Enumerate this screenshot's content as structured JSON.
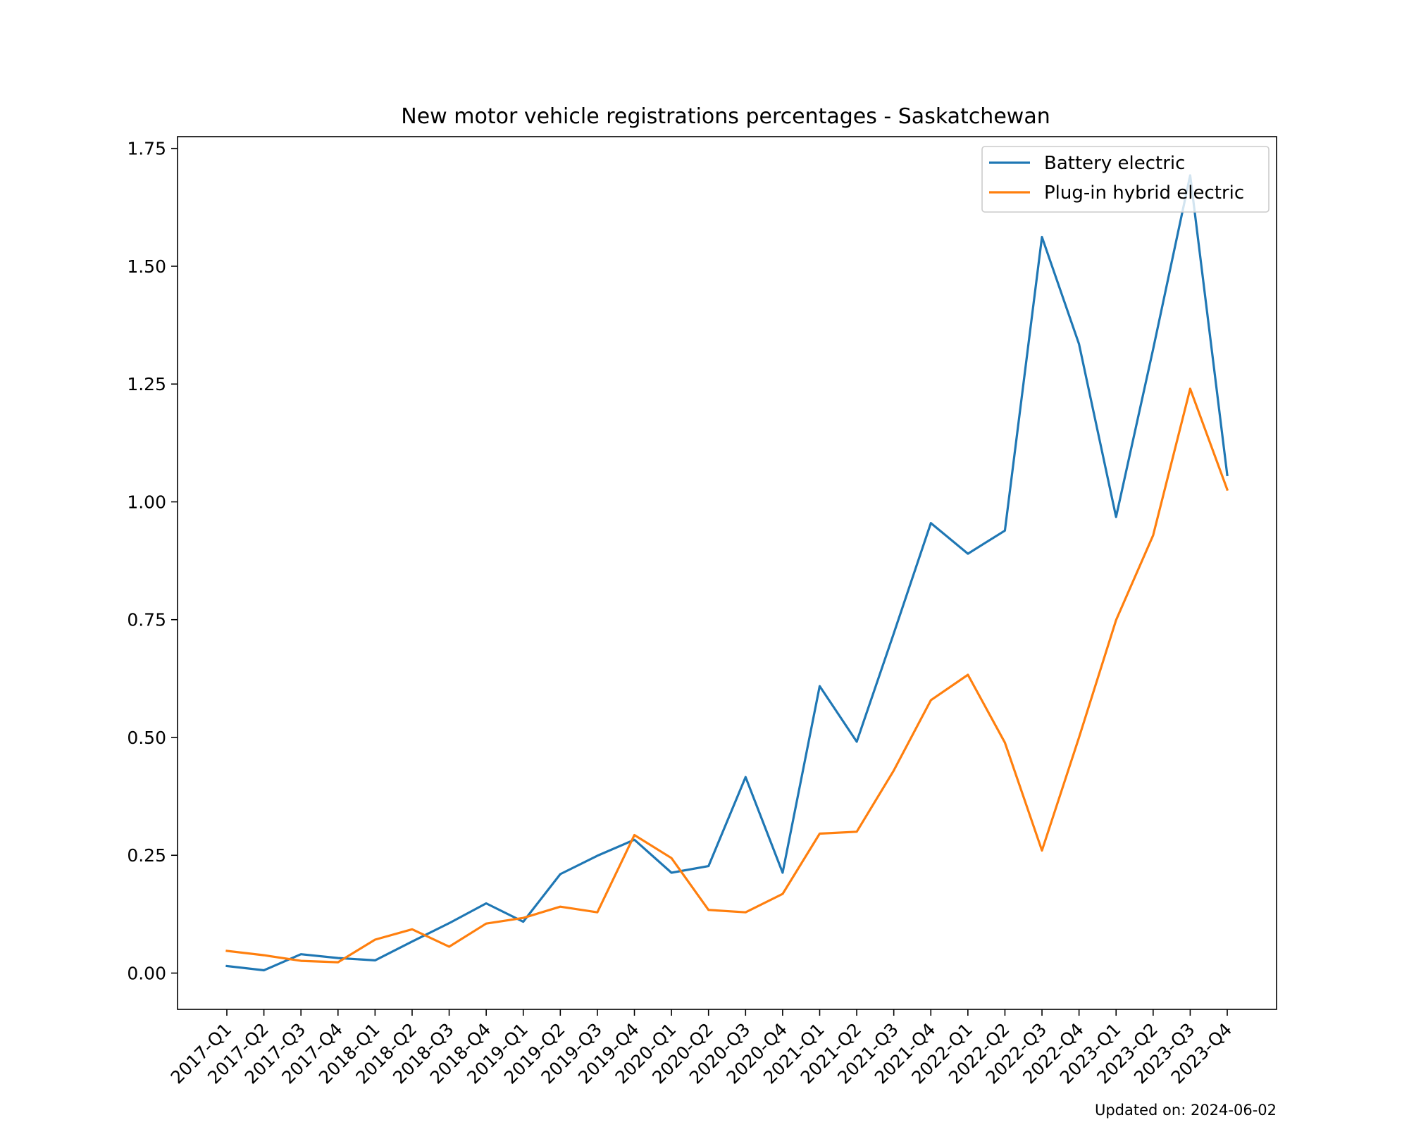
{
  "chart_data": {
    "type": "line",
    "title": "New motor vehicle registrations percentages - Saskatchewan",
    "xlabel": "",
    "ylabel": "",
    "categories": [
      "2017-Q1",
      "2017-Q2",
      "2017-Q3",
      "2017-Q4",
      "2018-Q1",
      "2018-Q2",
      "2018-Q3",
      "2018-Q4",
      "2019-Q1",
      "2019-Q2",
      "2019-Q3",
      "2019-Q4",
      "2020-Q1",
      "2020-Q2",
      "2020-Q3",
      "2020-Q4",
      "2021-Q1",
      "2021-Q2",
      "2021-Q3",
      "2021-Q4",
      "2022-Q1",
      "2022-Q2",
      "2022-Q3",
      "2022-Q4",
      "2023-Q1",
      "2023-Q2",
      "2023-Q3",
      "2023-Q4"
    ],
    "ylim": [
      -0.077,
      1.775
    ],
    "yticks": [
      0.0,
      0.25,
      0.5,
      0.75,
      1.0,
      1.25,
      1.5,
      1.75
    ],
    "ytick_labels": [
      "0.00",
      "0.25",
      "0.50",
      "0.75",
      "1.00",
      "1.25",
      "1.50",
      "1.75"
    ],
    "grid": false,
    "legend_position": "top-right",
    "series": [
      {
        "name": "Battery electric",
        "color": "#1f77b4",
        "values": [
          0.015,
          0.006,
          0.04,
          0.032,
          0.027,
          0.067,
          0.106,
          0.148,
          0.109,
          0.21,
          0.249,
          0.283,
          0.213,
          0.227,
          0.416,
          0.213,
          0.609,
          0.491,
          0.721,
          0.955,
          0.89,
          0.939,
          1.562,
          1.335,
          0.968,
          1.324,
          1.693,
          1.057
        ]
      },
      {
        "name": "Plug-in hybrid electric",
        "color": "#ff7f0e",
        "values": [
          0.047,
          0.038,
          0.026,
          0.023,
          0.071,
          0.093,
          0.056,
          0.105,
          0.117,
          0.141,
          0.129,
          0.293,
          0.244,
          0.134,
          0.129,
          0.168,
          0.296,
          0.3,
          0.43,
          0.579,
          0.633,
          0.489,
          0.26,
          0.5,
          0.749,
          0.929,
          1.24,
          1.026
        ]
      }
    ]
  },
  "footer": {
    "updated": "Updated on: 2024-06-02"
  }
}
